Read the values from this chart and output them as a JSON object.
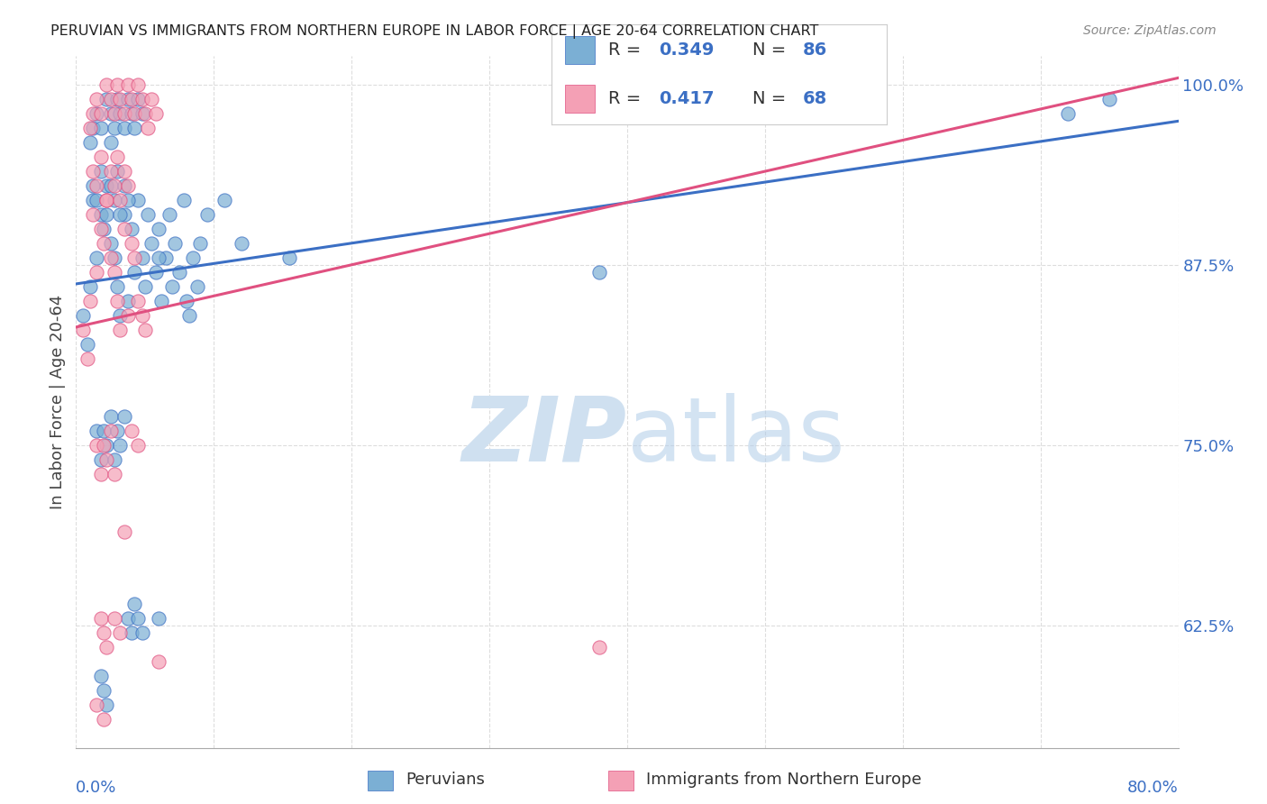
{
  "title": "PERUVIAN VS IMMIGRANTS FROM NORTHERN EUROPE IN LABOR FORCE | AGE 20-64 CORRELATION CHART",
  "source": "Source: ZipAtlas.com",
  "ylabel": "In Labor Force | Age 20-64",
  "ytick_labels": [
    "62.5%",
    "75.0%",
    "87.5%",
    "100.0%"
  ],
  "ytick_values": [
    0.625,
    0.75,
    0.875,
    1.0
  ],
  "xlim": [
    0.0,
    0.8
  ],
  "ylim": [
    0.54,
    1.02
  ],
  "R_blue": 0.349,
  "N_blue": 86,
  "R_pink": 0.417,
  "N_pink": 68,
  "color_blue": "#7bafd4",
  "color_pink": "#f4a0b5",
  "line_color_blue": "#3b6fc4",
  "line_color_pink": "#e05080",
  "background_color": "#ffffff",
  "grid_color": "#dddddd",
  "blue_dots": [
    [
      0.005,
      0.84
    ],
    [
      0.008,
      0.82
    ],
    [
      0.01,
      0.86
    ],
    [
      0.012,
      0.92
    ],
    [
      0.015,
      0.88
    ],
    [
      0.018,
      0.91
    ],
    [
      0.02,
      0.9
    ],
    [
      0.022,
      0.93
    ],
    [
      0.025,
      0.89
    ],
    [
      0.028,
      0.88
    ],
    [
      0.03,
      0.86
    ],
    [
      0.032,
      0.84
    ],
    [
      0.035,
      0.91
    ],
    [
      0.038,
      0.85
    ],
    [
      0.04,
      0.9
    ],
    [
      0.042,
      0.87
    ],
    [
      0.045,
      0.92
    ],
    [
      0.048,
      0.88
    ],
    [
      0.05,
      0.86
    ],
    [
      0.052,
      0.91
    ],
    [
      0.055,
      0.89
    ],
    [
      0.058,
      0.87
    ],
    [
      0.06,
      0.9
    ],
    [
      0.062,
      0.85
    ],
    [
      0.065,
      0.88
    ],
    [
      0.068,
      0.91
    ],
    [
      0.07,
      0.86
    ],
    [
      0.072,
      0.89
    ],
    [
      0.075,
      0.87
    ],
    [
      0.078,
      0.92
    ],
    [
      0.08,
      0.85
    ],
    [
      0.082,
      0.84
    ],
    [
      0.085,
      0.88
    ],
    [
      0.088,
      0.86
    ],
    [
      0.09,
      0.89
    ],
    [
      0.01,
      0.96
    ],
    [
      0.012,
      0.97
    ],
    [
      0.015,
      0.98
    ],
    [
      0.018,
      0.97
    ],
    [
      0.022,
      0.99
    ],
    [
      0.025,
      0.98
    ],
    [
      0.028,
      0.97
    ],
    [
      0.03,
      0.99
    ],
    [
      0.032,
      0.98
    ],
    [
      0.035,
      0.97
    ],
    [
      0.038,
      0.99
    ],
    [
      0.04,
      0.98
    ],
    [
      0.042,
      0.97
    ],
    [
      0.045,
      0.99
    ],
    [
      0.048,
      0.98
    ],
    [
      0.012,
      0.93
    ],
    [
      0.015,
      0.92
    ],
    [
      0.018,
      0.94
    ],
    [
      0.022,
      0.91
    ],
    [
      0.025,
      0.93
    ],
    [
      0.028,
      0.92
    ],
    [
      0.03,
      0.94
    ],
    [
      0.032,
      0.91
    ],
    [
      0.035,
      0.93
    ],
    [
      0.038,
      0.92
    ],
    [
      0.015,
      0.76
    ],
    [
      0.018,
      0.74
    ],
    [
      0.02,
      0.76
    ],
    [
      0.022,
      0.75
    ],
    [
      0.025,
      0.77
    ],
    [
      0.028,
      0.74
    ],
    [
      0.03,
      0.76
    ],
    [
      0.032,
      0.75
    ],
    [
      0.035,
      0.77
    ],
    [
      0.038,
      0.63
    ],
    [
      0.04,
      0.62
    ],
    [
      0.042,
      0.64
    ],
    [
      0.045,
      0.63
    ],
    [
      0.048,
      0.62
    ],
    [
      0.06,
      0.63
    ],
    [
      0.018,
      0.59
    ],
    [
      0.02,
      0.58
    ],
    [
      0.022,
      0.57
    ],
    [
      0.06,
      0.88
    ],
    [
      0.025,
      0.96
    ],
    [
      0.75,
      0.99
    ],
    [
      0.72,
      0.98
    ],
    [
      0.38,
      0.87
    ],
    [
      0.155,
      0.88
    ],
    [
      0.095,
      0.91
    ],
    [
      0.108,
      0.92
    ],
    [
      0.12,
      0.89
    ]
  ],
  "pink_dots": [
    [
      0.005,
      0.83
    ],
    [
      0.008,
      0.81
    ],
    [
      0.01,
      0.85
    ],
    [
      0.012,
      0.91
    ],
    [
      0.015,
      0.87
    ],
    [
      0.018,
      0.9
    ],
    [
      0.02,
      0.89
    ],
    [
      0.022,
      0.92
    ],
    [
      0.025,
      0.88
    ],
    [
      0.028,
      0.87
    ],
    [
      0.03,
      0.85
    ],
    [
      0.032,
      0.83
    ],
    [
      0.035,
      0.9
    ],
    [
      0.038,
      0.84
    ],
    [
      0.04,
      0.89
    ],
    [
      0.01,
      0.97
    ],
    [
      0.012,
      0.98
    ],
    [
      0.015,
      0.99
    ],
    [
      0.018,
      0.98
    ],
    [
      0.022,
      1.0
    ],
    [
      0.025,
      0.99
    ],
    [
      0.028,
      0.98
    ],
    [
      0.03,
      1.0
    ],
    [
      0.032,
      0.99
    ],
    [
      0.035,
      0.98
    ],
    [
      0.038,
      1.0
    ],
    [
      0.04,
      0.99
    ],
    [
      0.042,
      0.98
    ],
    [
      0.045,
      1.0
    ],
    [
      0.048,
      0.99
    ],
    [
      0.05,
      0.98
    ],
    [
      0.052,
      0.97
    ],
    [
      0.055,
      0.99
    ],
    [
      0.058,
      0.98
    ],
    [
      0.012,
      0.94
    ],
    [
      0.015,
      0.93
    ],
    [
      0.018,
      0.95
    ],
    [
      0.022,
      0.92
    ],
    [
      0.025,
      0.94
    ],
    [
      0.028,
      0.93
    ],
    [
      0.03,
      0.95
    ],
    [
      0.032,
      0.92
    ],
    [
      0.035,
      0.94
    ],
    [
      0.038,
      0.93
    ],
    [
      0.042,
      0.88
    ],
    [
      0.045,
      0.85
    ],
    [
      0.048,
      0.84
    ],
    [
      0.05,
      0.83
    ],
    [
      0.015,
      0.75
    ],
    [
      0.018,
      0.73
    ],
    [
      0.02,
      0.75
    ],
    [
      0.022,
      0.74
    ],
    [
      0.025,
      0.76
    ],
    [
      0.028,
      0.73
    ],
    [
      0.035,
      0.69
    ],
    [
      0.04,
      0.76
    ],
    [
      0.045,
      0.75
    ],
    [
      0.018,
      0.63
    ],
    [
      0.02,
      0.62
    ],
    [
      0.022,
      0.61
    ],
    [
      0.028,
      0.63
    ],
    [
      0.032,
      0.62
    ],
    [
      0.06,
      0.6
    ],
    [
      0.38,
      0.61
    ],
    [
      0.015,
      0.57
    ],
    [
      0.02,
      0.56
    ]
  ],
  "blue_line": [
    [
      0.0,
      0.862
    ],
    [
      0.8,
      0.975
    ]
  ],
  "pink_line": [
    [
      0.0,
      0.832
    ],
    [
      0.8,
      1.005
    ]
  ]
}
